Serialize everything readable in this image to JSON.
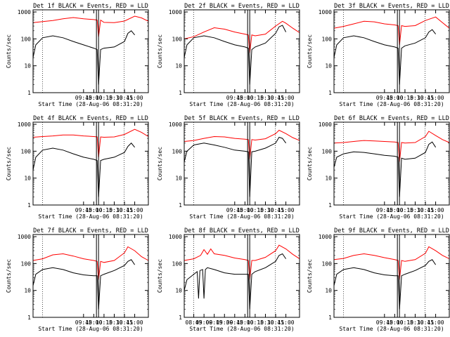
{
  "figure": {
    "background": "#ffffff",
    "axis_color": "#000000"
  },
  "chart_data": [
    {
      "type": "line",
      "title": "Det 1f BLACK = Events, RED = LLD",
      "xlabel": "Start Time (28-Aug-06 08:31:20)",
      "ylabel": "Counts/sec",
      "yscale": "log",
      "ylim": [
        1,
        1200
      ],
      "xlim": [
        "08:31",
        "11:20"
      ],
      "x_ticks": [
        "09:45",
        "10:00",
        "10:15",
        "10:30",
        "10:45",
        "11:00"
      ],
      "y_ticks": [
        "1",
        "10",
        "100",
        "1000"
      ],
      "series": [
        {
          "color": "#ff0000",
          "x": [
            "08:31",
            "08:45",
            "09:00",
            "09:15",
            "09:30",
            "09:45",
            "10:00",
            "10:05",
            "10:07",
            "10:10",
            "10:15",
            "10:30",
            "10:45",
            "11:00",
            "11:10",
            "11:20"
          ],
          "values": [
            400,
            440,
            480,
            560,
            620,
            560,
            520,
            500,
            120,
            500,
            410,
            400,
            460,
            700,
            600,
            450
          ]
        },
        {
          "color": "#000000",
          "x": [
            "08:31",
            "08:35",
            "08:45",
            "09:00",
            "09:15",
            "09:30",
            "09:45",
            "10:00",
            "10:05",
            "10:07",
            "10:10",
            "10:15",
            "10:30",
            "10:45",
            "10:50",
            "10:55",
            "11:00"
          ],
          "values": [
            20,
            60,
            110,
            130,
            110,
            80,
            60,
            45,
            40,
            2,
            40,
            45,
            50,
            80,
            160,
            200,
            140
          ]
        }
      ]
    },
    {
      "type": "line",
      "title": "Det 2f BLACK = Events, RED = LLD",
      "xlabel": "Start Time (28-Aug-06 08:31:20)",
      "ylabel": "Counts/sec",
      "yscale": "log",
      "ylim": [
        1,
        1200
      ],
      "xlim": [
        "08:31",
        "11:20"
      ],
      "x_ticks": [
        "09:45",
        "10:00",
        "10:15",
        "10:30",
        "10:45",
        "11:00"
      ],
      "y_ticks": [
        "1",
        "10",
        "100",
        "1000"
      ],
      "series": [
        {
          "color": "#ff0000",
          "x": [
            "08:31",
            "08:45",
            "09:00",
            "09:15",
            "09:30",
            "09:45",
            "10:00",
            "10:05",
            "10:07",
            "10:10",
            "10:15",
            "10:30",
            "10:45",
            "10:55",
            "11:00",
            "11:10",
            "11:20"
          ],
          "values": [
            100,
            120,
            180,
            260,
            230,
            180,
            150,
            140,
            30,
            140,
            130,
            150,
            300,
            450,
            380,
            250,
            170
          ]
        },
        {
          "color": "#000000",
          "x": [
            "08:31",
            "08:35",
            "08:45",
            "09:00",
            "09:15",
            "09:30",
            "09:45",
            "10:00",
            "10:05",
            "10:07",
            "10:10",
            "10:15",
            "10:30",
            "10:45",
            "10:50",
            "10:55",
            "11:00"
          ],
          "values": [
            20,
            60,
            110,
            130,
            110,
            80,
            60,
            50,
            45,
            2,
            40,
            50,
            70,
            160,
            280,
            320,
            180
          ]
        }
      ]
    },
    {
      "type": "line",
      "title": "Det 3f BLACK = Events, RED = LLD",
      "xlabel": "Start Time (28-Aug-06 08:31:20)",
      "ylabel": "Counts/sec",
      "yscale": "log",
      "ylim": [
        1,
        1200
      ],
      "xlim": [
        "08:31",
        "11:20"
      ],
      "x_ticks": [
        "09:45",
        "10:00",
        "10:15",
        "10:30",
        "10:45",
        "11:00"
      ],
      "y_ticks": [
        "1",
        "10",
        "100",
        "1000"
      ],
      "series": [
        {
          "color": "#ff0000",
          "x": [
            "08:31",
            "08:45",
            "09:00",
            "09:15",
            "09:30",
            "09:45",
            "10:00",
            "10:05",
            "10:07",
            "10:10",
            "10:15",
            "10:30",
            "10:45",
            "11:00",
            "11:10",
            "11:20"
          ],
          "values": [
            250,
            290,
            360,
            450,
            430,
            360,
            330,
            310,
            60,
            310,
            290,
            310,
            480,
            650,
            400,
            250
          ]
        },
        {
          "color": "#000000",
          "x": [
            "08:31",
            "08:35",
            "08:45",
            "09:00",
            "09:15",
            "09:30",
            "09:45",
            "10:00",
            "10:05",
            "10:07",
            "10:10",
            "10:15",
            "10:30",
            "10:45",
            "10:50",
            "10:55",
            "11:00"
          ],
          "values": [
            20,
            60,
            110,
            130,
            110,
            80,
            60,
            50,
            45,
            2,
            45,
            55,
            70,
            110,
            180,
            220,
            150
          ]
        }
      ]
    },
    {
      "type": "line",
      "title": "Det 4f BLACK = Events, RED = LLD",
      "xlabel": "Start Time (28-Aug-06 08:31:20)",
      "ylabel": "Counts/sec",
      "yscale": "log",
      "ylim": [
        1,
        1200
      ],
      "xlim": [
        "08:31",
        "11:20"
      ],
      "x_ticks": [
        "09:45",
        "10:00",
        "10:15",
        "10:30",
        "10:45",
        "11:00"
      ],
      "y_ticks": [
        "1",
        "10",
        "100",
        "1000"
      ],
      "series": [
        {
          "color": "#ff0000",
          "x": [
            "08:31",
            "08:45",
            "09:00",
            "09:15",
            "09:30",
            "09:45",
            "10:00",
            "10:05",
            "10:07",
            "10:10",
            "10:15",
            "10:30",
            "10:45",
            "11:00",
            "11:10",
            "11:20"
          ],
          "values": [
            330,
            350,
            370,
            400,
            400,
            370,
            350,
            340,
            60,
            340,
            330,
            340,
            420,
            650,
            500,
            350
          ]
        },
        {
          "color": "#000000",
          "x": [
            "08:31",
            "08:35",
            "08:45",
            "09:00",
            "09:15",
            "09:30",
            "09:45",
            "10:00",
            "10:05",
            "10:07",
            "10:10",
            "10:15",
            "10:30",
            "10:45",
            "10:50",
            "10:55",
            "11:00"
          ],
          "values": [
            20,
            60,
            110,
            130,
            110,
            80,
            60,
            50,
            45,
            2,
            45,
            50,
            60,
            90,
            150,
            200,
            140
          ]
        }
      ]
    },
    {
      "type": "line",
      "title": "Det 5f BLACK = Events, RED = LLD",
      "xlabel": "Start Time (28-Aug-06 08:31:20)",
      "ylabel": "Counts/sec",
      "yscale": "log",
      "ylim": [
        1,
        1200
      ],
      "xlim": [
        "08:31",
        "11:20"
      ],
      "x_ticks": [
        "09:45",
        "10:00",
        "10:15",
        "10:30",
        "10:45",
        "11:00"
      ],
      "y_ticks": [
        "1",
        "10",
        "100",
        "1000"
      ],
      "series": [
        {
          "color": "#ff0000",
          "x": [
            "08:31",
            "08:45",
            "09:00",
            "09:15",
            "09:30",
            "09:45",
            "10:00",
            "10:05",
            "10:07",
            "10:10",
            "10:15",
            "10:30",
            "10:45",
            "10:50",
            "11:00",
            "11:10",
            "11:20"
          ],
          "values": [
            230,
            250,
            300,
            350,
            340,
            300,
            280,
            270,
            50,
            270,
            260,
            290,
            450,
            600,
            450,
            320,
            250
          ]
        },
        {
          "color": "#000000",
          "x": [
            "08:31",
            "08:35",
            "08:45",
            "09:00",
            "09:15",
            "09:30",
            "09:45",
            "10:00",
            "10:05",
            "10:07",
            "10:10",
            "10:15",
            "10:30",
            "10:45",
            "10:50",
            "10:55",
            "11:00"
          ],
          "values": [
            40,
            100,
            170,
            200,
            170,
            140,
            110,
            100,
            95,
            2,
            95,
            100,
            130,
            200,
            330,
            300,
            200
          ]
        }
      ]
    },
    {
      "type": "line",
      "title": "Det 6f BLACK = Events, RED = LLD",
      "xlabel": "Start Time (28-Aug-06 08:31:20)",
      "ylabel": "Counts/sec",
      "yscale": "log",
      "ylim": [
        1,
        1200
      ],
      "xlim": [
        "08:31",
        "11:20"
      ],
      "x_ticks": [
        "09:45",
        "10:00",
        "10:15",
        "10:30",
        "10:45",
        "11:00"
      ],
      "y_ticks": [
        "1",
        "10",
        "100",
        "1000"
      ],
      "series": [
        {
          "color": "#ff0000",
          "x": [
            "08:31",
            "08:45",
            "09:00",
            "09:15",
            "09:30",
            "09:45",
            "10:00",
            "10:05",
            "10:07",
            "10:10",
            "10:15",
            "10:30",
            "10:45",
            "10:50",
            "11:00",
            "11:10",
            "11:20"
          ],
          "values": [
            200,
            210,
            230,
            250,
            240,
            230,
            220,
            210,
            40,
            210,
            200,
            210,
            350,
            550,
            380,
            270,
            210
          ]
        },
        {
          "color": "#000000",
          "x": [
            "08:31",
            "08:35",
            "08:45",
            "09:00",
            "09:15",
            "09:30",
            "09:45",
            "10:00",
            "10:05",
            "10:07",
            "10:10",
            "10:15",
            "10:30",
            "10:45",
            "10:50",
            "10:55",
            "11:00"
          ],
          "values": [
            25,
            60,
            80,
            95,
            90,
            80,
            70,
            65,
            60,
            2,
            55,
            50,
            55,
            90,
            180,
            220,
            140
          ]
        }
      ]
    },
    {
      "type": "line",
      "title": "Det 7f BLACK = Events, RED = LLD",
      "xlabel": "Start Time (28-Aug-06 08:31:20)",
      "ylabel": "Counts/sec",
      "yscale": "log",
      "ylim": [
        1,
        1200
      ],
      "xlim": [
        "08:31",
        "11:20"
      ],
      "x_ticks": [
        "09:45",
        "10:00",
        "10:15",
        "10:30",
        "10:45",
        "11:00"
      ],
      "y_ticks": [
        "1",
        "10",
        "100",
        "1000"
      ],
      "series": [
        {
          "color": "#ff0000",
          "x": [
            "08:31",
            "08:45",
            "09:00",
            "09:15",
            "09:30",
            "09:45",
            "10:00",
            "10:05",
            "10:07",
            "10:10",
            "10:15",
            "10:30",
            "10:45",
            "10:50",
            "11:00",
            "11:10",
            "11:20"
          ],
          "values": [
            130,
            150,
            210,
            230,
            190,
            150,
            130,
            120,
            25,
            120,
            110,
            130,
            250,
            420,
            300,
            180,
            130
          ]
        },
        {
          "color": "#000000",
          "x": [
            "08:31",
            "08:35",
            "08:45",
            "09:00",
            "09:15",
            "09:30",
            "09:45",
            "10:00",
            "10:05",
            "10:07",
            "10:10",
            "10:15",
            "10:30",
            "10:45",
            "10:50",
            "10:55",
            "11:00"
          ],
          "values": [
            15,
            40,
            60,
            70,
            60,
            45,
            38,
            35,
            35,
            2,
            35,
            40,
            55,
            85,
            120,
            140,
            90
          ]
        }
      ]
    },
    {
      "type": "line",
      "title": "Det 8f BLACK = Events, RED = LLD",
      "xlabel": "Start Time (28-Aug-06 08:31:20)",
      "ylabel": "Counts/sec",
      "yscale": "log",
      "ylim": [
        1,
        1200
      ],
      "xlim": [
        "08:31",
        "11:20"
      ],
      "x_ticks": [
        "08:45",
        "09:00",
        "09:15",
        "09:30",
        "09:45",
        "10:00",
        "10:15",
        "10:30",
        "10:45",
        "11:00"
      ],
      "y_ticks": [
        "1",
        "10",
        "100",
        "1000"
      ],
      "series": [
        {
          "color": "#ff0000",
          "x": [
            "08:31",
            "08:45",
            "08:55",
            "09:00",
            "09:05",
            "09:10",
            "09:15",
            "09:30",
            "09:45",
            "10:00",
            "10:05",
            "10:07",
            "10:10",
            "10:15",
            "10:30",
            "10:45",
            "10:50",
            "11:00",
            "11:10",
            "11:20"
          ],
          "values": [
            130,
            150,
            200,
            330,
            220,
            350,
            230,
            200,
            160,
            140,
            130,
            25,
            130,
            130,
            170,
            300,
            480,
            350,
            220,
            150
          ]
        },
        {
          "color": "#000000",
          "x": [
            "08:31",
            "08:35",
            "08:50",
            "08:52",
            "08:54",
            "08:58",
            "09:00",
            "09:02",
            "09:05",
            "09:15",
            "09:30",
            "09:45",
            "10:00",
            "10:05",
            "10:07",
            "10:10",
            "10:15",
            "10:30",
            "10:45",
            "10:50",
            "10:55",
            "11:00"
          ],
          "values": [
            10,
            25,
            50,
            5,
            55,
            60,
            5,
            60,
            70,
            60,
            45,
            40,
            40,
            40,
            2,
            40,
            50,
            70,
            120,
            200,
            230,
            150
          ]
        }
      ]
    },
    {
      "type": "line",
      "title": "Det 9f BLACK = Events, RED = LLD",
      "xlabel": "Start Time (28-Aug-06 08:31:20)",
      "ylabel": "Counts/sec",
      "yscale": "log",
      "ylim": [
        1,
        1200
      ],
      "xlim": [
        "08:31",
        "11:20"
      ],
      "x_ticks": [
        "09:45",
        "10:00",
        "10:15",
        "10:30",
        "10:45",
        "11:00"
      ],
      "y_ticks": [
        "1",
        "10",
        "100",
        "1000"
      ],
      "series": [
        {
          "color": "#ff0000",
          "x": [
            "08:31",
            "08:45",
            "09:00",
            "09:15",
            "09:30",
            "09:45",
            "10:00",
            "10:05",
            "10:07",
            "10:10",
            "10:15",
            "10:30",
            "10:45",
            "10:50",
            "11:00",
            "11:10",
            "11:20"
          ],
          "values": [
            140,
            155,
            200,
            230,
            200,
            165,
            140,
            130,
            25,
            130,
            120,
            140,
            240,
            420,
            300,
            200,
            150
          ]
        },
        {
          "color": "#000000",
          "x": [
            "08:31",
            "08:35",
            "08:45",
            "09:00",
            "09:15",
            "09:30",
            "09:45",
            "10:00",
            "10:05",
            "10:07",
            "10:10",
            "10:15",
            "10:30",
            "10:45",
            "10:50",
            "10:55",
            "11:00"
          ],
          "values": [
            15,
            40,
            60,
            70,
            60,
            45,
            38,
            35,
            35,
            2,
            35,
            40,
            55,
            85,
            120,
            140,
            90
          ]
        }
      ]
    }
  ]
}
